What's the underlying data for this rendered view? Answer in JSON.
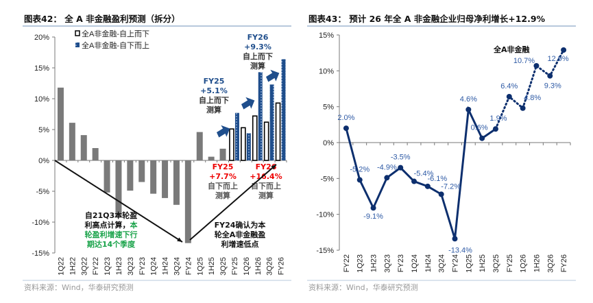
{
  "chart_data": [
    {
      "type": "bar",
      "title": "图表42：  全 A 非金融盈利预测（拆分）",
      "source": "资料来源：Wind，华泰研究预测",
      "ylim": [
        -15,
        20
      ],
      "yticks": [
        "-15%",
        "-10%",
        "-5%",
        "0%",
        "5%",
        "10%",
        "15%",
        "20%"
      ],
      "ytick_values": [
        -15,
        -10,
        -5,
        0,
        5,
        10,
        15,
        20
      ],
      "legend_placement": "top",
      "categories": [
        "1Q22",
        "1H22",
        "3Q22",
        "FY22",
        "1Q23",
        "1H23",
        "3Q23",
        "FY23",
        "1Q24",
        "1H24",
        "3Q24",
        "FY24",
        "1Q25",
        "1H25",
        "3Q25",
        "FY25",
        "1Q26",
        "1H26",
        "3Q26",
        "FY26"
      ],
      "series": [
        {
          "name": "",
          "color": "#7a7a7a",
          "values": [
            11.8,
            6.1,
            4.1,
            2.0,
            -5.2,
            -9.1,
            -4.9,
            -3.5,
            -5.4,
            -6.1,
            -7.2,
            -13.4,
            4.6,
            0.6,
            1.9,
            null,
            null,
            null,
            null,
            null
          ]
        },
        {
          "name": "全A非金融-自上而下",
          "color": "#ffffff",
          "values": [
            null,
            null,
            null,
            null,
            null,
            null,
            null,
            null,
            null,
            null,
            null,
            null,
            null,
            null,
            null,
            5.1,
            5.3,
            7.2,
            6.2,
            9.3
          ]
        },
        {
          "name": "全A非金融-自下而上",
          "color": "#1f4e8c",
          "values": [
            null,
            null,
            null,
            null,
            null,
            null,
            null,
            null,
            null,
            null,
            null,
            null,
            null,
            null,
            null,
            7.7,
            4.4,
            14.3,
            12.3,
            16.4
          ]
        }
      ],
      "annotations": {
        "fy25_top": [
          "FY25",
          "+5.1%",
          "自上而下",
          "测算"
        ],
        "fy26_top": [
          "FY26",
          "+9.3%",
          "自上而下",
          "测算"
        ],
        "fy25_bottom": [
          "FY25",
          "+7.7%",
          "自下而上",
          "测算"
        ],
        "fy26_bottom": [
          "FY26",
          "+16.4%",
          "自下而上",
          "测算"
        ],
        "decline_note": [
          "自21Q3本轮盈",
          "利高点计算，",
          "本",
          "轮盈利增速下行",
          "期达14个季度"
        ],
        "low_note": [
          "FY24确认为本",
          "轮全A非金融盈",
          "利增速低点"
        ]
      }
    },
    {
      "type": "line",
      "title": "图表43：  预计 26 年全 A 非金融企业归母净利增长+12.9%",
      "source": "资料来源：Wind，华泰研究预测",
      "ylim": [
        -15,
        15
      ],
      "yticks": [
        "-15%",
        "-10%",
        "-5%",
        "0%",
        "5%",
        "10%",
        "15%"
      ],
      "ytick_values": [
        -15,
        -10,
        -5,
        0,
        5,
        10,
        15
      ],
      "categories": [
        "FY22",
        "1Q23",
        "1H23",
        "3Q23",
        "FY23",
        "1Q24",
        "1H24",
        "3Q24",
        "FY24",
        "1Q25",
        "1H25",
        "3Q25",
        "FY25",
        "1Q26",
        "1H26",
        "3Q26",
        "FY26"
      ],
      "series": [
        {
          "name": "全A非金融",
          "color": "#0d2f6e",
          "values": [
            2.0,
            -5.2,
            -9.1,
            -4.9,
            -3.5,
            -5.4,
            -6.1,
            -7.2,
            -13.4,
            4.6,
            0.6,
            1.9,
            6.4,
            4.8,
            10.7,
            9.3,
            12.9
          ],
          "labels": [
            "2.0%",
            "-5.2%",
            "-9.1%",
            "-4.9%",
            "-3.5%",
            "-5.4%",
            "-6.1%",
            "-7.2%",
            "-13.4%",
            "4.6%",
            "0.6%",
            "1.9%",
            "6.4%",
            "4.8%",
            "10.7%",
            "9.3%",
            "12.9%"
          ],
          "actual_through": "3Q25",
          "forecast_style": "dotted"
        }
      ]
    }
  ]
}
